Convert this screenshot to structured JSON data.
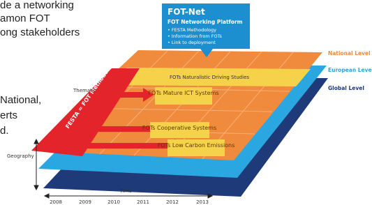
{
  "intro_text": [
    "de a networking",
    "amon FOT",
    "ong stakeholders",
    "National,",
    "erts",
    "d."
  ],
  "callout": {
    "title": "FOT-Net",
    "subtitle": "FOT Networking Platform",
    "bullets": [
      "• FESTA Methodology",
      "• Information from FOTs",
      "• Link to deployment"
    ]
  },
  "levels": [
    "National Level",
    "European Level",
    "Global Level"
  ],
  "studies": [
    "FOTs Naturalistic Driving Studies",
    "FOTs Mature ICT Systems",
    "FOTs Cooperative Systems",
    "FOTs Low Carbon Emissions"
  ],
  "festa": "FESTA = FOT Methodology",
  "axes": {
    "thematic": "Thematic",
    "geography": "Geography",
    "time": "Time",
    "years": [
      "2008",
      "2009",
      "2010",
      "2011",
      "2012",
      "2013"
    ]
  }
}
